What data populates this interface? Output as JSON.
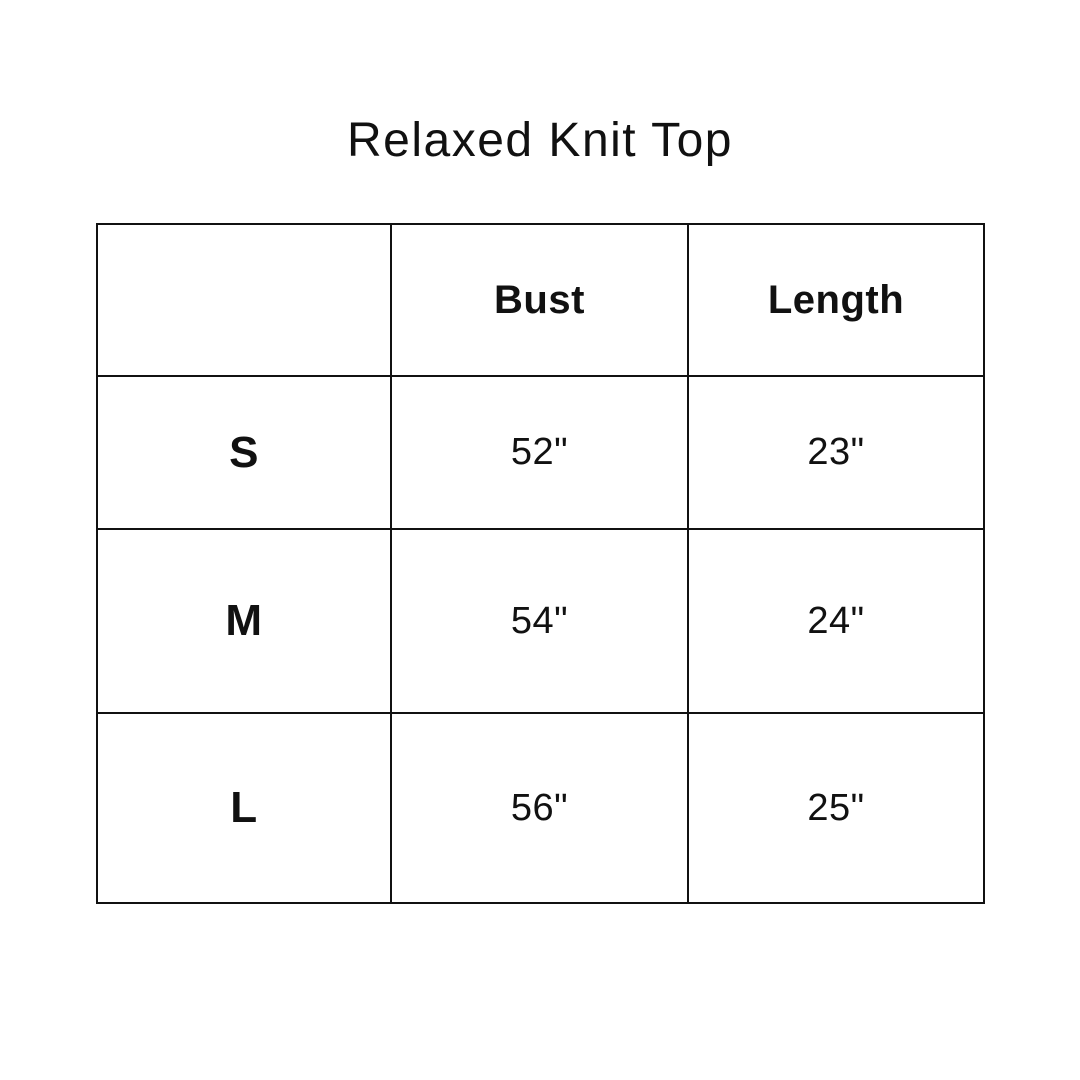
{
  "canvas": {
    "background": "#ffffff",
    "text_color": "#111111",
    "border_color": "#111111"
  },
  "title": "Relaxed Knit Top",
  "table": {
    "headers": {
      "size": "",
      "bust": "Bust",
      "length": "Length"
    },
    "rows": [
      {
        "size": "S",
        "bust": "52\"",
        "length": "23\""
      },
      {
        "size": "M",
        "bust": "54\"",
        "length": "24\""
      },
      {
        "size": "L",
        "bust": "56\"",
        "length": "25\""
      }
    ]
  },
  "chart_data": {
    "type": "table",
    "title": "Relaxed Knit Top",
    "columns": [
      "",
      "Bust",
      "Length"
    ],
    "rows": [
      [
        "S",
        "52\"",
        "23\""
      ],
      [
        "M",
        "54\"",
        "24\""
      ],
      [
        "L",
        "56\"",
        "25\""
      ]
    ]
  }
}
